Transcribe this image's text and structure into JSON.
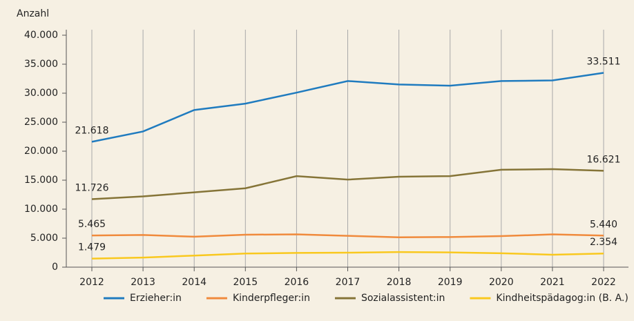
{
  "chart_data": {
    "type": "line",
    "y_label": "Anzahl",
    "categories": [
      "2012",
      "2013",
      "2014",
      "2015",
      "2016",
      "2017",
      "2018",
      "2019",
      "2020",
      "2021",
      "2022"
    ],
    "series": [
      {
        "name": "Erzieher:in",
        "color": "#1f7bbf",
        "values": [
          21618,
          23400,
          27100,
          28200,
          30100,
          32100,
          31500,
          31300,
          32100,
          32200,
          33511
        ],
        "value_labels": [
          "21.618",
          null,
          null,
          null,
          null,
          null,
          null,
          null,
          null,
          null,
          "33.511"
        ]
      },
      {
        "name": "Kinderpfleger:in",
        "color": "#f08a3c",
        "values": [
          5465,
          5550,
          5250,
          5600,
          5650,
          5400,
          5150,
          5200,
          5350,
          5650,
          5440
        ],
        "value_labels": [
          "5.465",
          null,
          null,
          null,
          null,
          null,
          null,
          null,
          null,
          null,
          "5.440"
        ]
      },
      {
        "name": "Sozialassistent:in",
        "color": "#857437",
        "values": [
          11726,
          12200,
          12900,
          13600,
          15700,
          15100,
          15600,
          15700,
          16800,
          16900,
          16621
        ],
        "value_labels": [
          "11.726",
          null,
          null,
          null,
          null,
          null,
          null,
          null,
          null,
          null,
          "16.621"
        ]
      },
      {
        "name": "Kindheitspädagog:in (B. A.)",
        "color": "#f9c81e",
        "values": [
          1479,
          1650,
          2000,
          2350,
          2450,
          2500,
          2600,
          2550,
          2400,
          2150,
          2354
        ],
        "value_labels": [
          "1.479",
          null,
          null,
          null,
          null,
          null,
          null,
          null,
          null,
          null,
          "2.354"
        ]
      }
    ],
    "ylim": [
      0,
      40000
    ],
    "yticks": [
      0,
      {
        "value": 5000,
        "label": "5.000"
      },
      {
        "value": 10000,
        "label": "10.000"
      },
      {
        "value": 15000,
        "label": "15.000"
      },
      {
        "value": 20000,
        "label": "20.000"
      },
      {
        "value": 25000,
        "label": "25.000"
      },
      {
        "value": 30000,
        "label": "30.000"
      },
      {
        "value": 35000,
        "label": "35.000"
      },
      {
        "value": 40000,
        "label": "40.000"
      }
    ]
  }
}
